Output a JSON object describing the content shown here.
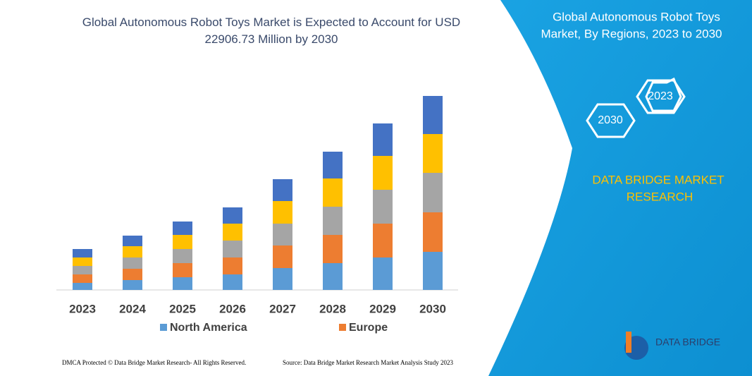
{
  "chart_data": {
    "type": "stacked-bar",
    "title": "Global Autonomous Robot Toys Market is Expected to Account for USD 22906.73 Million by 2030",
    "categories": [
      "2023",
      "2024",
      "2025",
      "2026",
      "2027",
      "2028",
      "2029",
      "2030"
    ],
    "series": [
      {
        "name": "North America",
        "color": "#5b9bd5",
        "values": [
          10,
          14,
          18,
          22,
          31,
          38,
          46,
          54
        ]
      },
      {
        "name": "Europe",
        "color": "#ed7d31",
        "values": [
          12,
          16,
          20,
          24,
          32,
          40,
          48,
          56
        ]
      },
      {
        "color": "#a5a5a5",
        "values": [
          12,
          16,
          20,
          24,
          31,
          40,
          48,
          56
        ]
      },
      {
        "color": "#ffc000",
        "values": [
          12,
          16,
          20,
          24,
          32,
          40,
          48,
          55
        ]
      },
      {
        "color": "#4472c4",
        "values": [
          12,
          15,
          19,
          23,
          31,
          38,
          46,
          54
        ]
      }
    ]
  },
  "panel": {
    "title": [
      "Global Autonomous Robot Toys",
      "Market, By Regions, 2023 to 2030"
    ],
    "hex_top": "2023",
    "hex_bottom": "2030",
    "brand": [
      "DATA BRIDGE MARKET",
      "RESEARCH"
    ]
  },
  "logo": {
    "text": "DATA BRIDGE"
  },
  "footer": {
    "left": "DMCA Protected © Data Bridge Market Research- All Rights Reserved.",
    "right": "Source: Data Bridge Market Research  Market Analysis Study 2023"
  }
}
